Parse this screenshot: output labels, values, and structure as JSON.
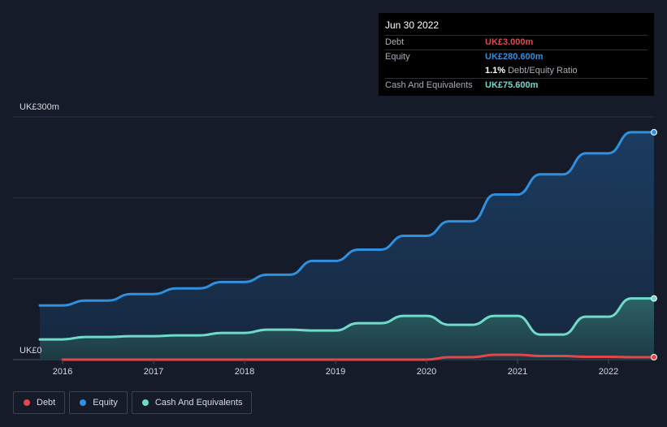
{
  "tooltip": {
    "date": "Jun 30 2022",
    "rows": [
      {
        "label": "Debt",
        "value": "UK£3.000m",
        "color": "#e2474c"
      },
      {
        "label": "Equity",
        "value": "UK£280.600m",
        "color": "#3090e0"
      },
      {
        "label": "",
        "value": "1.1%",
        "extra": "Debt/Equity Ratio",
        "color": "#ffffff"
      },
      {
        "label": "Cash And Equivalents",
        "value": "UK£75.600m",
        "color": "#6fdccb"
      }
    ]
  },
  "legend": [
    {
      "label": "Debt",
      "color": "#e2474c"
    },
    {
      "label": "Equity",
      "color": "#3090e0"
    },
    {
      "label": "Cash And Equivalents",
      "color": "#6fdccb"
    }
  ],
  "chart_data": {
    "type": "area",
    "ylabel_top": "UK£300m",
    "ylabel_bottom": "UK£0",
    "ylim": [
      0,
      300
    ],
    "xlim": [
      2015.75,
      2022.5
    ],
    "x_ticks": [
      "2016",
      "2017",
      "2018",
      "2019",
      "2020",
      "2021",
      "2022"
    ],
    "grid": true,
    "legend_position": "bottom-left",
    "series": [
      {
        "name": "Equity",
        "color": "#3090e0",
        "points": [
          [
            2015.75,
            67
          ],
          [
            2016.0,
            67
          ],
          [
            2016.25,
            73
          ],
          [
            2016.5,
            73
          ],
          [
            2016.75,
            81
          ],
          [
            2017.0,
            81
          ],
          [
            2017.25,
            88
          ],
          [
            2017.5,
            88
          ],
          [
            2017.75,
            96
          ],
          [
            2018.0,
            96
          ],
          [
            2018.25,
            105
          ],
          [
            2018.5,
            105
          ],
          [
            2018.75,
            122
          ],
          [
            2019.0,
            122
          ],
          [
            2019.25,
            136
          ],
          [
            2019.5,
            136
          ],
          [
            2019.75,
            153
          ],
          [
            2020.0,
            153
          ],
          [
            2020.25,
            171
          ],
          [
            2020.5,
            171
          ],
          [
            2020.75,
            204
          ],
          [
            2021.0,
            204
          ],
          [
            2021.25,
            229
          ],
          [
            2021.5,
            229
          ],
          [
            2021.75,
            255
          ],
          [
            2022.0,
            255
          ],
          [
            2022.25,
            281
          ],
          [
            2022.5,
            281
          ]
        ]
      },
      {
        "name": "Cash And Equivalents",
        "color": "#6fdccb",
        "points": [
          [
            2015.75,
            25
          ],
          [
            2016.0,
            25
          ],
          [
            2016.25,
            28
          ],
          [
            2016.5,
            28
          ],
          [
            2016.75,
            29
          ],
          [
            2017.0,
            29
          ],
          [
            2017.25,
            30
          ],
          [
            2017.5,
            30
          ],
          [
            2017.75,
            33
          ],
          [
            2018.0,
            33
          ],
          [
            2018.25,
            37
          ],
          [
            2018.5,
            37
          ],
          [
            2018.75,
            36
          ],
          [
            2019.0,
            36
          ],
          [
            2019.25,
            45
          ],
          [
            2019.5,
            45
          ],
          [
            2019.75,
            54
          ],
          [
            2020.0,
            54
          ],
          [
            2020.25,
            43
          ],
          [
            2020.5,
            43
          ],
          [
            2020.75,
            54
          ],
          [
            2021.0,
            54
          ],
          [
            2021.25,
            31
          ],
          [
            2021.5,
            31
          ],
          [
            2021.75,
            53
          ],
          [
            2022.0,
            53
          ],
          [
            2022.25,
            75.6
          ],
          [
            2022.5,
            75.6
          ]
        ]
      },
      {
        "name": "Debt",
        "color": "#e2474c",
        "points": [
          [
            2016.0,
            0
          ],
          [
            2020.0,
            0
          ],
          [
            2020.25,
            3
          ],
          [
            2020.5,
            3
          ],
          [
            2020.75,
            6
          ],
          [
            2021.0,
            6
          ],
          [
            2021.25,
            4.5
          ],
          [
            2021.5,
            4.5
          ],
          [
            2021.75,
            3.5
          ],
          [
            2022.0,
            3.5
          ],
          [
            2022.25,
            3
          ],
          [
            2022.5,
            3
          ]
        ]
      }
    ]
  }
}
